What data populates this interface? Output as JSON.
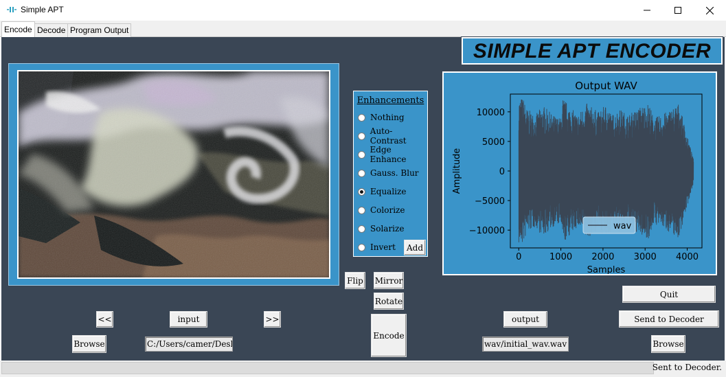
{
  "window": {
    "title": "Simple APT",
    "controls": [
      "minimize-icon",
      "maximize-icon",
      "close-icon"
    ]
  },
  "tabs": [
    {
      "label": "Encode",
      "active": true
    },
    {
      "label": "Decode",
      "active": false
    },
    {
      "label": "Program Output",
      "active": false
    }
  ],
  "header": {
    "title": "SIMPLE APT ENCODER"
  },
  "enhancements": {
    "title": "Enhancements",
    "selected": "Equalize",
    "options": [
      "Nothing",
      "Auto-Contrast",
      "Edge Enhance",
      "Gauss. Blur",
      "Equalize",
      "Colorize",
      "Solarize",
      "Invert"
    ],
    "add_label": "Add"
  },
  "image_controls": {
    "flip_label": "Flip",
    "mirror_label": "Mirror",
    "rotate_label": "Rotate",
    "encode_label": "Encode"
  },
  "input": {
    "prev_label": "<<",
    "next_label": ">>",
    "label": "input",
    "browse_label": "Browse",
    "path_value": "C:/Users/camer/Desktc"
  },
  "output": {
    "label": "output",
    "browse_label": "Browse",
    "path_value": "wav/initial_wav.wav"
  },
  "actions": {
    "quit_label": "Quit",
    "send_label": "Send to Decoder"
  },
  "status": {
    "text": "Sent to Decoder."
  },
  "colors": {
    "panel_bg": "#3a4655",
    "accent": "#3a94c9",
    "wave": "#3a4655"
  },
  "chart_data": {
    "type": "line",
    "title": "Output WAV",
    "xlabel": "Samples",
    "ylabel": "Amplitude",
    "xlim": [
      -200,
      4350
    ],
    "ylim": [
      -13000,
      13000
    ],
    "xticks": [
      0,
      1000,
      2000,
      3000,
      4000
    ],
    "yticks": [
      10000,
      5000,
      0,
      -5000,
      -10000
    ],
    "xtick_labels": [
      "0",
      "1000",
      "2000",
      "3000",
      "4000"
    ],
    "ytick_labels": [
      "10000",
      "5000",
      "0",
      "−5000",
      "−10000"
    ],
    "legend": {
      "position": "lower-center",
      "entries": [
        "wav"
      ]
    },
    "series": [
      {
        "name": "wav",
        "x_range": [
          0,
          4150
        ],
        "envelope_x": [
          0,
          100,
          200,
          400,
          500,
          600,
          800,
          1000,
          1050,
          1200,
          1400,
          1600,
          1900,
          2100,
          2200,
          2400,
          2600,
          2900,
          3100,
          3200,
          3400,
          3600,
          3800,
          4000,
          4150
        ],
        "envelope_amp": [
          12500,
          12500,
          10500,
          9500,
          10500,
          11000,
          9500,
          9000,
          12500,
          11000,
          9500,
          11500,
          10000,
          11500,
          9500,
          10500,
          9500,
          11000,
          11500,
          9000,
          9500,
          10500,
          11500,
          6000,
          2000
        ]
      }
    ]
  }
}
